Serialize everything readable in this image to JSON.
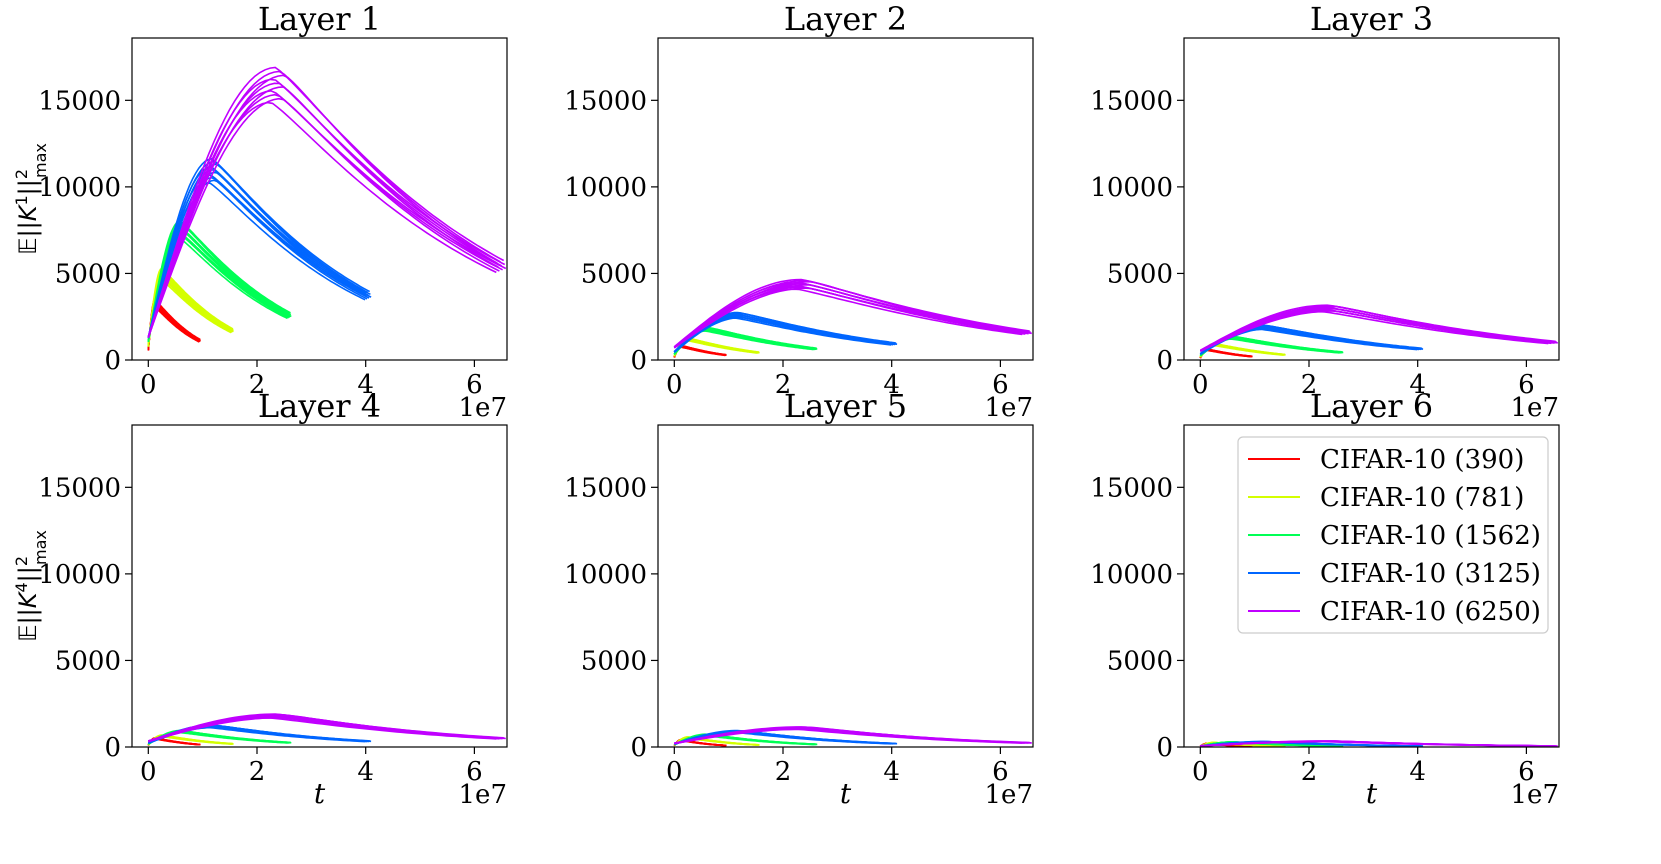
{
  "figure": {
    "ylabel_top": {
      "base": "𝔼||K",
      "sup": "1",
      "tail": "||",
      "sub_sup": "2",
      "sub": "max"
    },
    "ylabel_bottom": {
      "base": "𝔼||K",
      "sup": "4",
      "tail": "||",
      "sub_sup": "2",
      "sub": "max"
    },
    "xlabel": "t",
    "x_offset_label": "1e7"
  },
  "chart_data": [
    {
      "type": "line",
      "title": "Layer 1",
      "peaks": [
        3300,
        5000,
        7600,
        11000,
        16000
      ],
      "end_ratio": 0.34
    },
    {
      "type": "line",
      "title": "Layer 2",
      "peaks": [
        800,
        1200,
        1800,
        2600,
        4400
      ],
      "end_ratio": 0.36
    },
    {
      "type": "line",
      "title": "Layer 3",
      "peaks": [
        600,
        900,
        1300,
        1900,
        3000
      ],
      "end_ratio": 0.34
    },
    {
      "type": "line",
      "title": "Layer 4",
      "peaks": [
        500,
        650,
        900,
        1200,
        1800
      ],
      "end_ratio": 0.28
    },
    {
      "type": "line",
      "title": "Layer 5",
      "peaks": [
        400,
        550,
        700,
        900,
        1100
      ],
      "end_ratio": 0.22
    },
    {
      "type": "line",
      "title": "Layer 6",
      "peaks": [
        200,
        250,
        280,
        300,
        330
      ],
      "end_ratio": 0.18
    }
  ],
  "shared": {
    "ylim": [
      0,
      18600
    ],
    "xlim": [
      -0.3,
      6.6
    ],
    "yticks": [
      0,
      5000,
      10000,
      15000
    ],
    "xticks": [
      0,
      2,
      4,
      6
    ],
    "grid": false
  },
  "series": [
    {
      "name": "CIFAR-10 (390)",
      "color": "#ff0000",
      "t_end": 0.95,
      "t_peak": 0.12
    },
    {
      "name": "CIFAR-10 (781)",
      "color": "#d4ff00",
      "t_end": 1.55,
      "t_peak": 0.25
    },
    {
      "name": "CIFAR-10 (1562)",
      "color": "#00ff55",
      "t_end": 2.6,
      "t_peak": 0.6
    },
    {
      "name": "CIFAR-10 (3125)",
      "color": "#0066ff",
      "t_end": 4.05,
      "t_peak": 1.2
    },
    {
      "name": "CIFAR-10 (6250)",
      "color": "#c000ff",
      "t_end": 6.5,
      "t_peak": 2.4
    }
  ],
  "legend": {
    "placement": "top-right",
    "panel": 6
  }
}
